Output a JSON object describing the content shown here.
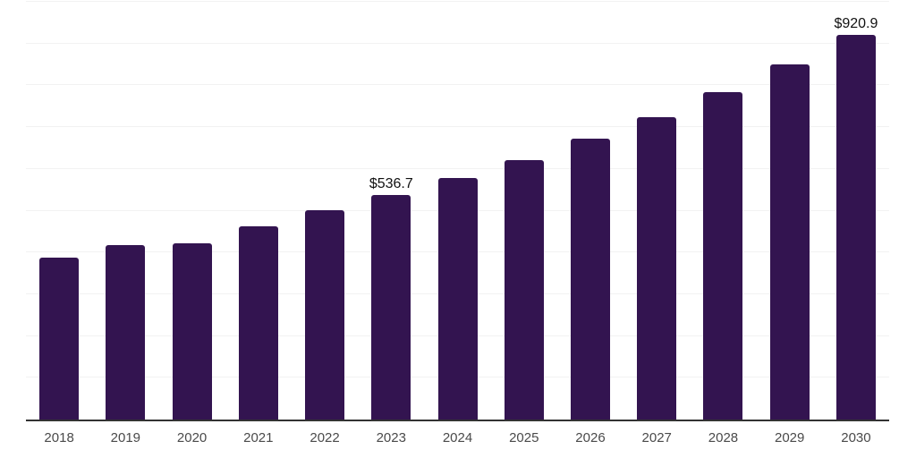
{
  "chart_data": {
    "type": "bar",
    "title": "",
    "xlabel": "",
    "ylabel": "",
    "categories": [
      "2018",
      "2019",
      "2020",
      "2021",
      "2022",
      "2023",
      "2024",
      "2025",
      "2026",
      "2027",
      "2028",
      "2029",
      "2030"
    ],
    "values": [
      388,
      417,
      422,
      462,
      501,
      536.7,
      578,
      621,
      672,
      723,
      783,
      850,
      920.9
    ],
    "data_labels": [
      "",
      "",
      "",
      "",
      "",
      "$536.7",
      "",
      "",
      "",
      "",
      "",
      "",
      "$920.9"
    ],
    "ylim": [
      0,
      1000
    ],
    "gridline_interval": 100,
    "grid": "horizontal",
    "legend": "none",
    "bar_color": "#331450",
    "gridline_color": "#f2f2f2",
    "axis_line_color": "#333333",
    "tick_label_color": "#4a4a4a",
    "data_label_color": "#111111"
  }
}
